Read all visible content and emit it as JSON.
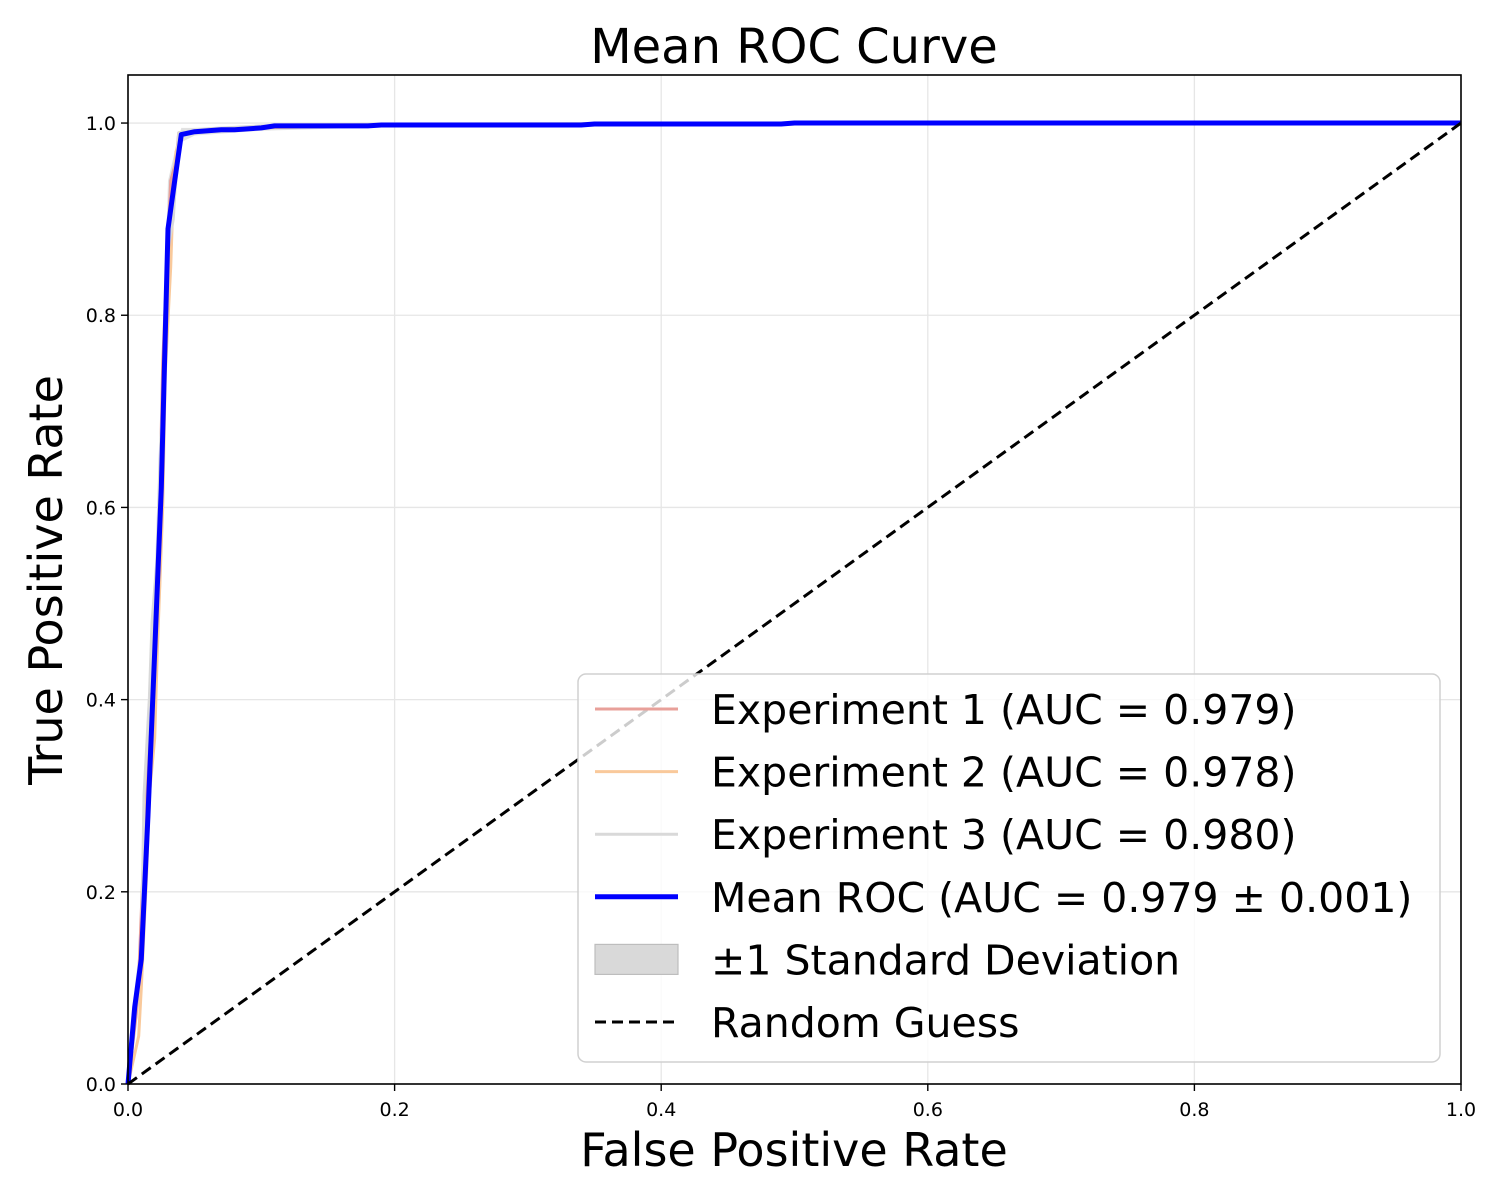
{
  "chart_data": {
    "type": "line",
    "title": "Mean ROC Curve",
    "xlabel": "False Positive Rate",
    "ylabel": "True Positive Rate",
    "xlim": [
      0.0,
      1.0
    ],
    "ylim": [
      0.0,
      1.05
    ],
    "xticks": [
      0.0,
      0.2,
      0.4,
      0.6,
      0.8,
      1.0
    ],
    "yticks": [
      0.0,
      0.2,
      0.4,
      0.6,
      0.8,
      1.0
    ],
    "xtick_labels": [
      "0.0",
      "0.2",
      "0.4",
      "0.6",
      "0.8",
      "1.0"
    ],
    "ytick_labels": [
      "0.0",
      "0.2",
      "0.4",
      "0.6",
      "0.8",
      "1.0"
    ],
    "grid": true,
    "legend_position": "lower-right",
    "series": [
      {
        "name": "Experiment 1 (AUC = 0.979)",
        "color": "#e8a09a",
        "style": "solid",
        "x": [
          0.0,
          0.006,
          0.008,
          0.012,
          0.014,
          0.018,
          0.02,
          0.024,
          0.026,
          0.03,
          0.032,
          0.036,
          0.038,
          0.06,
          0.1,
          0.2,
          0.5,
          1.0
        ],
        "y": [
          0.0,
          0.07,
          0.11,
          0.25,
          0.33,
          0.38,
          0.46,
          0.62,
          0.75,
          0.88,
          0.94,
          0.96,
          0.99,
          0.993,
          0.996,
          0.998,
          1.0,
          1.0
        ]
      },
      {
        "name": "Experiment 2 (AUC = 0.978)",
        "color": "#f9c99b",
        "style": "solid",
        "x": [
          0.0,
          0.008,
          0.01,
          0.014,
          0.016,
          0.02,
          0.022,
          0.026,
          0.028,
          0.032,
          0.034,
          0.036,
          0.04,
          0.06,
          0.1,
          0.2,
          0.5,
          1.0
        ],
        "y": [
          0.0,
          0.05,
          0.1,
          0.22,
          0.3,
          0.36,
          0.45,
          0.6,
          0.74,
          0.85,
          0.93,
          0.97,
          0.99,
          0.992,
          0.995,
          0.998,
          1.0,
          1.0
        ]
      },
      {
        "name": "Experiment 3 (AUC = 0.980)",
        "color": "#d9d9d9",
        "style": "solid",
        "x": [
          0.0,
          0.006,
          0.01,
          0.012,
          0.016,
          0.018,
          0.022,
          0.024,
          0.028,
          0.03,
          0.034,
          0.036,
          0.038,
          0.06,
          0.1,
          0.2,
          0.5,
          1.0
        ],
        "y": [
          0.0,
          0.09,
          0.13,
          0.3,
          0.4,
          0.48,
          0.55,
          0.65,
          0.77,
          0.87,
          0.9,
          0.95,
          0.99,
          0.994,
          0.997,
          0.999,
          1.0,
          1.0
        ]
      },
      {
        "name": "Mean ROC (AUC = 0.979 ± 0.001)",
        "color": "#0000ff",
        "style": "solid",
        "x": [
          0.0,
          0.005,
          0.01,
          0.015,
          0.02,
          0.025,
          0.03,
          0.035,
          0.04,
          0.05,
          0.06,
          0.07,
          0.08,
          0.1,
          0.11,
          0.18,
          0.19,
          0.34,
          0.35,
          0.49,
          0.5,
          1.0
        ],
        "y": [
          0.0,
          0.08,
          0.13,
          0.28,
          0.45,
          0.62,
          0.89,
          0.94,
          0.988,
          0.991,
          0.992,
          0.993,
          0.993,
          0.995,
          0.997,
          0.997,
          0.998,
          0.998,
          0.999,
          0.999,
          1.0,
          1.0
        ]
      },
      {
        "name": "Random Guess",
        "color": "#000000",
        "style": "dashed",
        "x": [
          0.0,
          1.0
        ],
        "y": [
          0.0,
          1.0
        ]
      }
    ],
    "band": {
      "name": "±1 Standard Deviation",
      "color": "#d9d9d9",
      "x": [
        0.0,
        0.005,
        0.01,
        0.015,
        0.02,
        0.025,
        0.03,
        0.035,
        0.04,
        0.05,
        0.1,
        0.2,
        0.5,
        1.0
      ],
      "upper": [
        0.0,
        0.1,
        0.16,
        0.33,
        0.53,
        0.72,
        0.94,
        0.97,
        0.995,
        0.995,
        0.998,
        1.0,
        1.0,
        1.0
      ],
      "lower": [
        0.0,
        0.05,
        0.1,
        0.23,
        0.38,
        0.52,
        0.84,
        0.91,
        0.98,
        0.987,
        0.992,
        0.996,
        0.998,
        1.0
      ]
    }
  }
}
